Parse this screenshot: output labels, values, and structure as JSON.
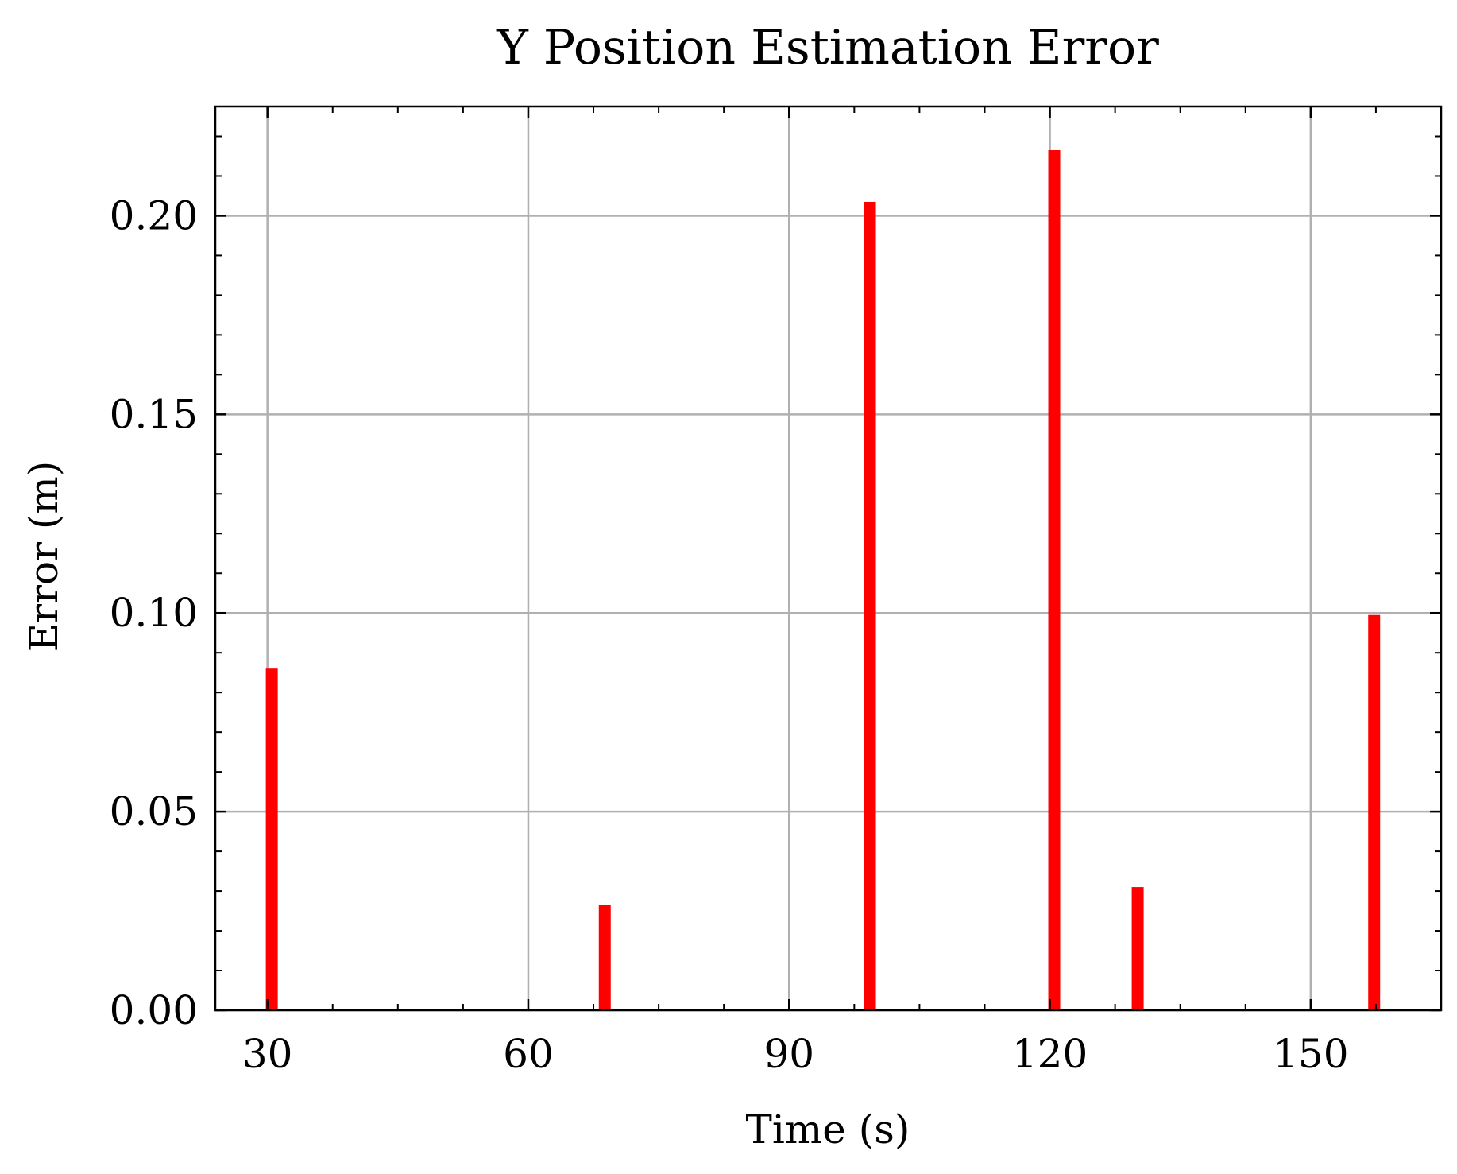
{
  "chart_data": {
    "type": "bar",
    "title": "Y Position Estimation Error",
    "xlabel": "Time (s)",
    "ylabel": "Error (m)",
    "xlim": [
      24,
      165
    ],
    "ylim": [
      0.0,
      0.2275
    ],
    "x_ticks": [
      30,
      60,
      90,
      120,
      150
    ],
    "x_tick_labels": [
      "30",
      "60",
      "90",
      "120",
      "150"
    ],
    "x_minor_step": 7.5,
    "y_ticks": [
      0.0,
      0.05,
      0.1,
      0.15,
      0.2
    ],
    "y_tick_labels": [
      "0.00",
      "0.05",
      "0.10",
      "0.15",
      "0.20"
    ],
    "y_minor_step": 0.01,
    "grid": true,
    "legend": "none",
    "series": [
      {
        "x": [
          30.5,
          68.8,
          99.3,
          120.5,
          130.1,
          157.3
        ],
        "values": [
          0.086,
          0.0265,
          0.2035,
          0.2165,
          0.031,
          0.0995
        ],
        "color": "#ff0000"
      }
    ],
    "colors": {
      "bar": "#ff0000",
      "grid": "#b0b0b0",
      "axis": "#000000",
      "background": "#ffffff"
    }
  }
}
